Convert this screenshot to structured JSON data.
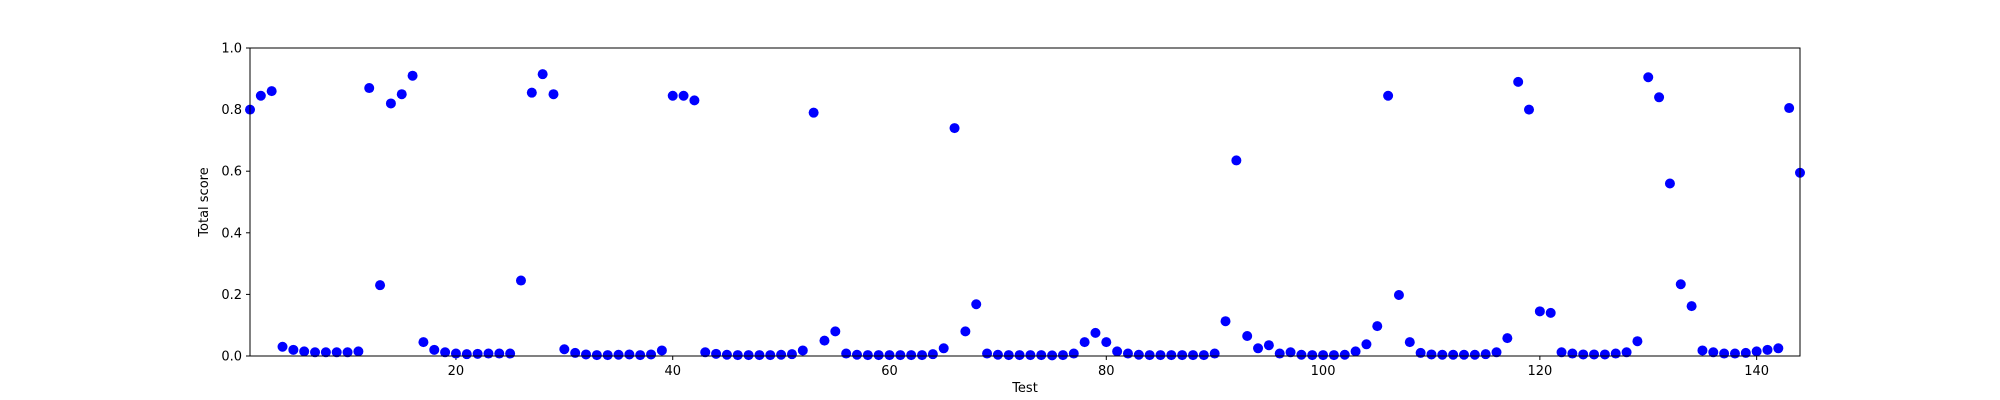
{
  "chart_data": {
    "type": "scatter",
    "x_label": "Test",
    "y_label": "Total score",
    "color": "#0000ff",
    "grid": false,
    "xlim": [
      1,
      144
    ],
    "ylim": [
      0,
      1
    ],
    "xticks": [
      20,
      40,
      60,
      80,
      100,
      120,
      140
    ],
    "yticks": [
      {
        "value": 0,
        "label": "0.0"
      },
      0.2,
      0.4,
      0.6,
      0.8,
      {
        "value": 1,
        "label": "1.0"
      }
    ],
    "x": [
      1,
      2,
      3,
      4,
      5,
      6,
      7,
      8,
      9,
      10,
      11,
      12,
      13,
      14,
      15,
      16,
      17,
      18,
      19,
      20,
      21,
      22,
      23,
      24,
      25,
      26,
      27,
      28,
      29,
      30,
      31,
      32,
      33,
      34,
      35,
      36,
      37,
      38,
      39,
      40,
      41,
      42,
      43,
      44,
      45,
      46,
      47,
      48,
      49,
      50,
      51,
      52,
      53,
      54,
      55,
      56,
      57,
      58,
      59,
      60,
      61,
      62,
      63,
      64,
      65,
      66,
      67,
      68,
      69,
      70,
      71,
      72,
      73,
      74,
      75,
      76,
      77,
      78,
      79,
      80,
      81,
      82,
      83,
      84,
      85,
      86,
      87,
      88,
      89,
      90,
      91,
      92,
      93,
      94,
      95,
      96,
      97,
      98,
      99,
      100,
      101,
      102,
      103,
      104,
      105,
      106,
      107,
      108,
      109,
      110,
      111,
      112,
      113,
      114,
      115,
      116,
      117,
      118,
      119,
      120,
      121,
      122,
      123,
      124,
      125,
      126,
      127,
      128,
      129,
      130,
      131,
      132,
      133,
      134,
      135,
      136,
      137,
      138,
      139,
      140,
      141,
      142,
      143,
      144
    ],
    "values": [
      0.8,
      0.845,
      0.86,
      0.03,
      0.02,
      0.015,
      0.012,
      0.012,
      0.012,
      0.012,
      0.015,
      0.87,
      0.23,
      0.82,
      0.85,
      0.91,
      0.045,
      0.02,
      0.012,
      0.008,
      0.006,
      0.007,
      0.008,
      0.008,
      0.008,
      0.245,
      0.855,
      0.915,
      0.85,
      0.022,
      0.01,
      0.005,
      0.003,
      0.003,
      0.004,
      0.005,
      0.003,
      0.005,
      0.018,
      0.845,
      0.845,
      0.83,
      0.012,
      0.007,
      0.004,
      0.003,
      0.003,
      0.003,
      0.003,
      0.004,
      0.006,
      0.018,
      0.79,
      0.05,
      0.08,
      0.008,
      0.004,
      0.003,
      0.003,
      0.003,
      0.003,
      0.003,
      0.003,
      0.006,
      0.025,
      0.74,
      0.08,
      0.168,
      0.008,
      0.004,
      0.003,
      0.003,
      0.003,
      0.003,
      0.002,
      0.003,
      0.008,
      0.045,
      0.075,
      0.045,
      0.015,
      0.008,
      0.004,
      0.003,
      0.003,
      0.003,
      0.003,
      0.003,
      0.003,
      0.008,
      0.113,
      0.635,
      0.065,
      0.025,
      0.035,
      0.008,
      0.012,
      0.004,
      0.003,
      0.003,
      0.003,
      0.004,
      0.015,
      0.038,
      0.097,
      0.845,
      0.198,
      0.045,
      0.01,
      0.005,
      0.004,
      0.004,
      0.004,
      0.004,
      0.006,
      0.012,
      0.058,
      0.89,
      0.8,
      0.145,
      0.14,
      0.012,
      0.008,
      0.005,
      0.005,
      0.005,
      0.008,
      0.012,
      0.048,
      0.905,
      0.84,
      0.56,
      0.233,
      0.162,
      0.018,
      0.012,
      0.008,
      0.008,
      0.01,
      0.015,
      0.02,
      0.025,
      0.805,
      0.595
    ]
  }
}
